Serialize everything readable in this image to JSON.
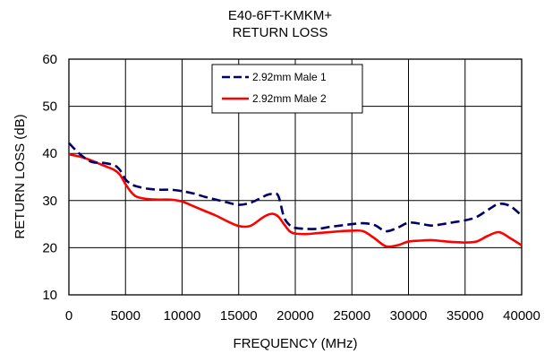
{
  "chart_data": {
    "type": "line",
    "title": "E40-6FT-KMKM+",
    "subtitle": "RETURN LOSS",
    "xlabel": "FREQUENCY (MHz)",
    "ylabel": "RETURN LOSS (dB)",
    "xlim": [
      0,
      40000
    ],
    "ylim": [
      10,
      60
    ],
    "x_ticks": [
      "0",
      "5000",
      "10000",
      "15000",
      "20000",
      "25000",
      "30000",
      "35000",
      "40000"
    ],
    "y_ticks": [
      "10",
      "20",
      "30",
      "40",
      "50",
      "60"
    ],
    "grid": true,
    "legend_position": "top-center",
    "series": [
      {
        "name": "2.92mm Male 1",
        "color": "#000066",
        "style": "dashed",
        "x": [
          0,
          1000,
          2000,
          3000,
          4000,
          4500,
          5000,
          5500,
          6000,
          7000,
          8000,
          9000,
          10000,
          11000,
          12000,
          13000,
          14000,
          15000,
          16000,
          17000,
          17500,
          18000,
          18500,
          19000,
          19500,
          20000,
          21000,
          22000,
          23000,
          24000,
          25000,
          26000,
          27000,
          28000,
          29000,
          30000,
          31000,
          32000,
          33000,
          34000,
          35000,
          36000,
          37000,
          38000,
          39000,
          40000
        ],
        "values": [
          42.2,
          39.8,
          38.2,
          38.0,
          37.5,
          36.5,
          34.5,
          33.5,
          33.0,
          32.5,
          32.3,
          32.3,
          32.0,
          31.5,
          30.8,
          30.2,
          29.6,
          29.1,
          29.5,
          30.6,
          31.2,
          31.4,
          31.0,
          26.5,
          24.8,
          24.2,
          24.0,
          24.0,
          24.4,
          24.7,
          25.0,
          25.2,
          24.8,
          23.5,
          24.2,
          25.3,
          25.1,
          24.7,
          25.0,
          25.4,
          25.8,
          26.5,
          28.0,
          29.3,
          28.8,
          26.8
        ]
      },
      {
        "name": "2.92mm Male 2",
        "color": "#ff0000",
        "style": "solid",
        "x": [
          0,
          1000,
          2000,
          3000,
          4000,
          4500,
          5000,
          5500,
          6000,
          7000,
          8000,
          9000,
          10000,
          11000,
          12000,
          13000,
          14000,
          15000,
          16000,
          17000,
          17500,
          18000,
          18500,
          19000,
          19500,
          20000,
          21000,
          22000,
          23000,
          24000,
          25000,
          26000,
          27000,
          28000,
          29000,
          30000,
          31000,
          32000,
          33000,
          34000,
          35000,
          36000,
          37000,
          38000,
          39000,
          40000
        ],
        "values": [
          39.8,
          39.3,
          38.5,
          37.5,
          36.5,
          35.5,
          33.5,
          31.8,
          30.8,
          30.3,
          30.2,
          30.2,
          29.8,
          28.8,
          27.8,
          26.8,
          25.6,
          24.6,
          24.6,
          26.2,
          26.9,
          27.2,
          26.6,
          25.0,
          23.5,
          23.0,
          22.9,
          23.1,
          23.3,
          23.5,
          23.6,
          23.5,
          22.0,
          20.3,
          20.5,
          21.3,
          21.5,
          21.6,
          21.4,
          21.2,
          21.1,
          21.3,
          22.5,
          23.3,
          22.0,
          20.5
        ]
      }
    ]
  }
}
